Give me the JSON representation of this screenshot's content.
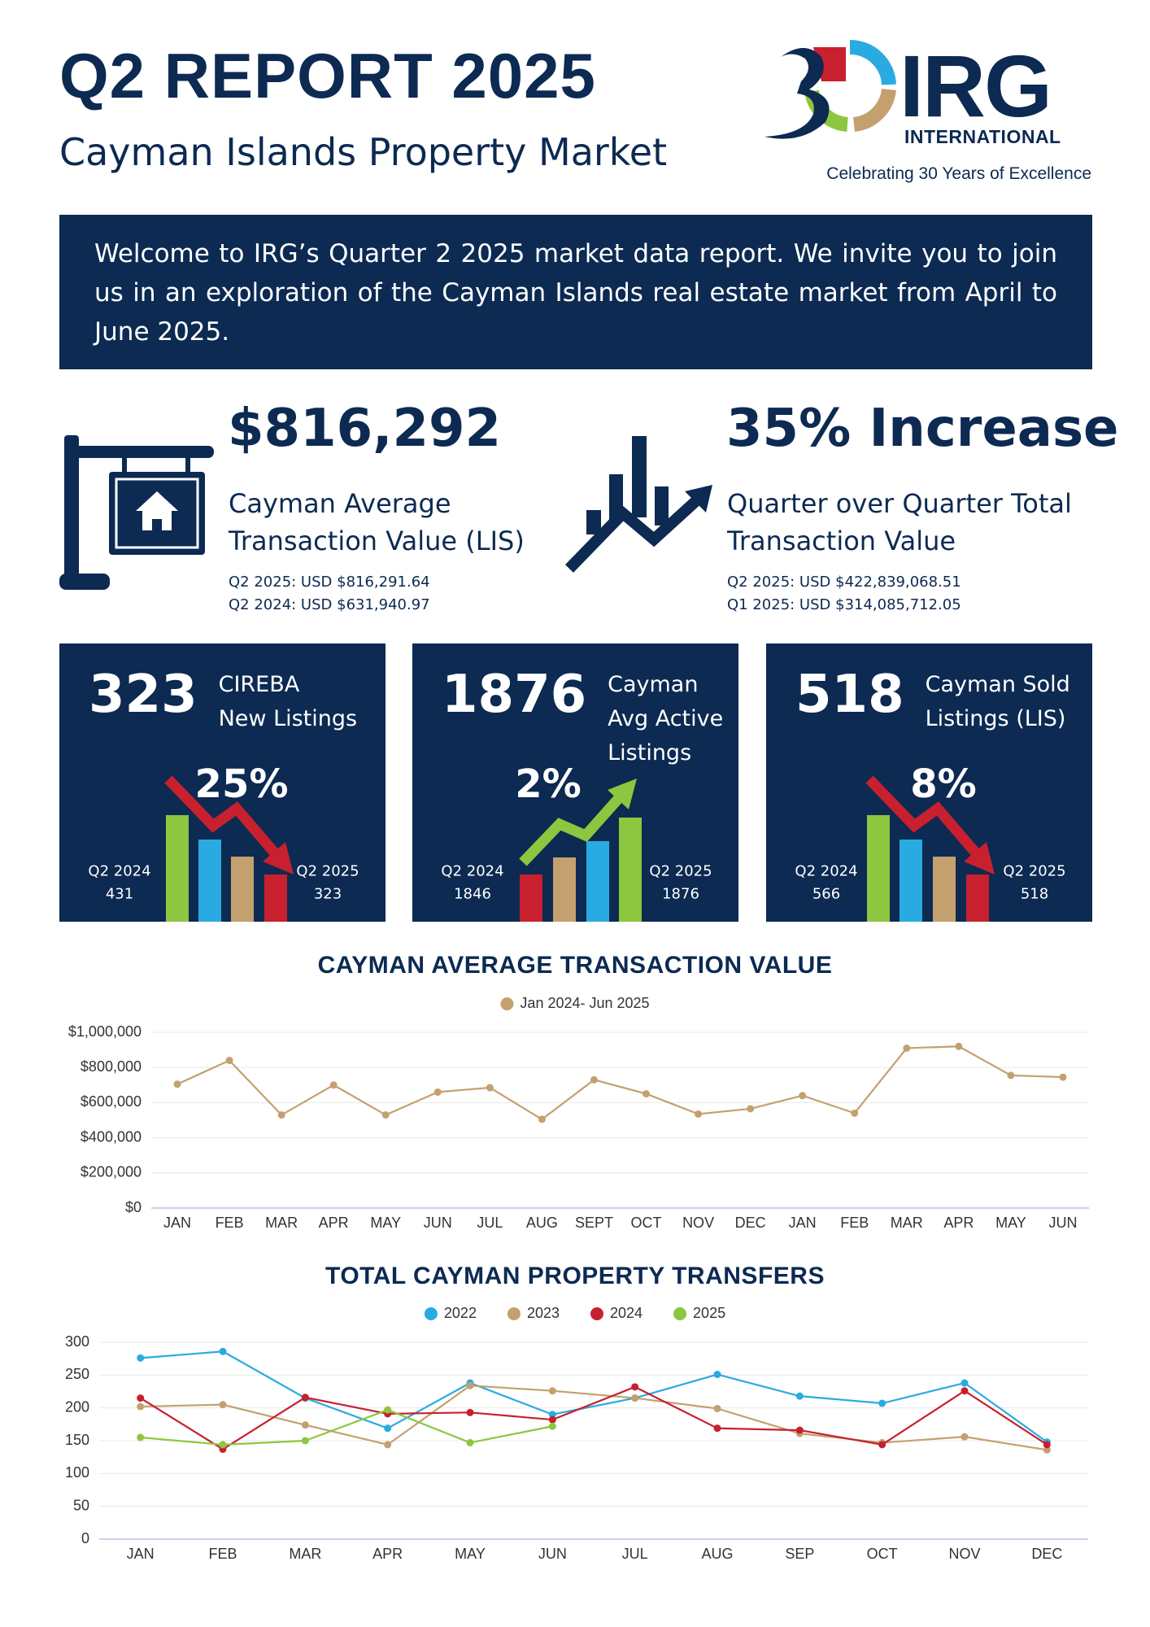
{
  "header": {
    "title": "Q2 REPORT 2025",
    "subtitle": "Cayman Islands Property Market"
  },
  "logo": {
    "name": "IRG",
    "sub": "INTERNATIONAL",
    "tagline": "Celebrating 30 Years of Excellence"
  },
  "intro": "Welcome to IRG’s Quarter 2 2025 market data report. We invite you to join us in an exploration of the Cayman Islands real estate market from April to June 2025.",
  "stats": [
    {
      "headline": "$816,292",
      "label": [
        "Cayman Average",
        "Transaction Value (LIS)"
      ],
      "details": [
        "Q2 2025: USD $816,291.64",
        "Q2 2024: USD $631,940.97"
      ]
    },
    {
      "headline": "35% Increase",
      "label": [
        "Quarter over Quarter Total",
        "Transaction Value"
      ],
      "details": [
        "Q2 2025: USD $422,839,068.51",
        "Q1 2025: USD $314,085,712.05"
      ]
    }
  ],
  "cards": [
    {
      "value": "323",
      "label": [
        "CIREBA",
        "New Listings"
      ],
      "change": "25%",
      "from_label": "Q2 2024",
      "from_value": "431",
      "to_label": "Q2 2025",
      "to_value": "323"
    },
    {
      "value": "1876",
      "label": [
        "Cayman",
        "Avg Active",
        "Listings"
      ],
      "change": "2%",
      "from_label": "Q2 2024",
      "from_value": "1846",
      "to_label": "Q2 2025",
      "to_value": "1876"
    },
    {
      "value": "518",
      "label": [
        "Cayman Sold",
        "Listings (LIS)"
      ],
      "change": "8%",
      "from_label": "Q2 2024",
      "from_value": "566",
      "to_label": "Q2 2025",
      "to_value": "518"
    }
  ],
  "chart_data": [
    {
      "type": "line",
      "title": "CAYMAN AVERAGE TRANSACTION VALUE",
      "categories": [
        "JAN",
        "FEB",
        "MAR",
        "APR",
        "MAY",
        "JUN",
        "JUL",
        "AUG",
        "SEPT",
        "OCT",
        "NOV",
        "DEC",
        "JAN",
        "FEB",
        "MAR",
        "APR",
        "MAY",
        "JUN"
      ],
      "series": [
        {
          "name": "Jan 2024- Jun 2025",
          "color": "#c4a06f",
          "values": [
            705000,
            840000,
            530000,
            700000,
            530000,
            660000,
            685000,
            505000,
            730000,
            650000,
            535000,
            565000,
            640000,
            540000,
            910000,
            920000,
            755000,
            745000
          ]
        }
      ],
      "ylim": [
        0,
        1000000
      ],
      "yticks": [
        {
          "value": 0,
          "label": "$0"
        },
        {
          "value": 200000,
          "label": "$200,000"
        },
        {
          "value": 400000,
          "label": "$400,000"
        },
        {
          "value": 600000,
          "label": "$600,000"
        },
        {
          "value": 800000,
          "label": "$800,000"
        },
        {
          "value": 1000000,
          "label": "$1,000,000"
        }
      ],
      "grid": true,
      "legend": "top"
    },
    {
      "type": "line",
      "title": "TOTAL CAYMAN PROPERTY TRANSFERS",
      "categories": [
        "JAN",
        "FEB",
        "MAR",
        "APR",
        "MAY",
        "JUN",
        "JUL",
        "AUG",
        "SEP",
        "OCT",
        "NOV",
        "DEC"
      ],
      "series": [
        {
          "name": "2022",
          "color": "#29abe2",
          "values": [
            276,
            286,
            215,
            169,
            238,
            190,
            215,
            251,
            218,
            207,
            238,
            148
          ]
        },
        {
          "name": "2023",
          "color": "#c4a06f",
          "values": [
            202,
            205,
            174,
            144,
            234,
            226,
            215,
            199,
            161,
            147,
            156,
            136
          ]
        },
        {
          "name": "2024",
          "color": "#c8202e",
          "values": [
            215,
            137,
            216,
            191,
            193,
            182,
            232,
            169,
            166,
            144,
            226,
            144
          ]
        },
        {
          "name": "2025",
          "color": "#8dc63f",
          "values": [
            155,
            144,
            150,
            197,
            147,
            172,
            null,
            null,
            null,
            null,
            null,
            null
          ]
        }
      ],
      "ylim": [
        0,
        300
      ],
      "yticks": [
        0,
        50,
        100,
        150,
        200,
        250,
        300
      ],
      "grid": true,
      "legend": "top"
    }
  ]
}
